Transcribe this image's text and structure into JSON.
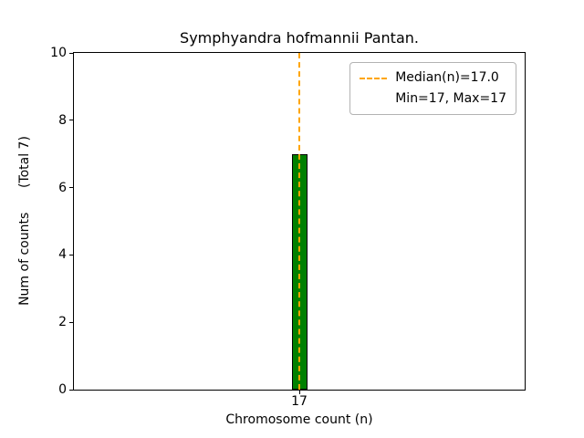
{
  "chart_data": {
    "type": "bar",
    "title": "Symphyandra hofmannii Pantan.",
    "xlabel": "Chromosome count (n)",
    "ylabel": "Num of counts      (Total 7)",
    "categories": [
      "17"
    ],
    "values": [
      7
    ],
    "ylim": [
      0,
      10
    ],
    "yticks": [
      0,
      2,
      4,
      6,
      8,
      10
    ],
    "grid": false,
    "bar_color": "#008000",
    "bar_edge_color": "#000000",
    "median_line": {
      "value": 17.0,
      "color": "#FFA500",
      "style": "dashed"
    },
    "stats": {
      "median": 17.0,
      "min": 17,
      "max": 17,
      "total": 7
    },
    "legend": {
      "position": "upper right",
      "entries": [
        {
          "label": "Median(n)=17.0",
          "marker": "dashed-line",
          "color": "#FFA500"
        },
        {
          "label": "Min=17, Max=17",
          "marker": "none",
          "color": ""
        }
      ]
    }
  }
}
